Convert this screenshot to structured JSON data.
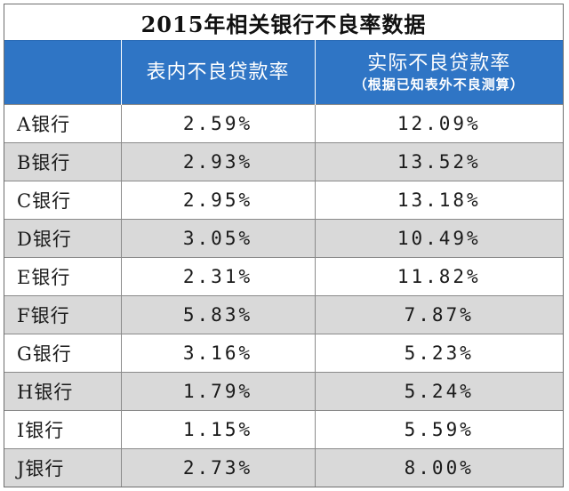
{
  "title": "2015年相关银行不良率数据",
  "headers": {
    "bank": "",
    "on_balance": "表内不良贷款率",
    "actual": "实际不良贷款率",
    "actual_note": "（根据已知表外不良测算）"
  },
  "rows": [
    {
      "bank": "A银行",
      "on_balance": "2.59%",
      "actual": "12.09%"
    },
    {
      "bank": "B银行",
      "on_balance": "2.93%",
      "actual": "13.52%"
    },
    {
      "bank": "C银行",
      "on_balance": "2.95%",
      "actual": "13.18%"
    },
    {
      "bank": "D银行",
      "on_balance": "3.05%",
      "actual": "10.49%"
    },
    {
      "bank": "E银行",
      "on_balance": "2.31%",
      "actual": "11.82%"
    },
    {
      "bank": "F银行",
      "on_balance": "5.83%",
      "actual": "7.87%"
    },
    {
      "bank": "G银行",
      "on_balance": "3.16%",
      "actual": "5.23%"
    },
    {
      "bank": "H银行",
      "on_balance": "1.79%",
      "actual": "5.24%"
    },
    {
      "bank": "I银行",
      "on_balance": "1.15%",
      "actual": "5.59%"
    },
    {
      "bank": "J银行",
      "on_balance": "2.73%",
      "actual": "8.00%"
    }
  ],
  "colors": {
    "header_bg": "#2f75c5",
    "header_text": "#ffffff",
    "stripe_bg": "#d9d9d9"
  }
}
